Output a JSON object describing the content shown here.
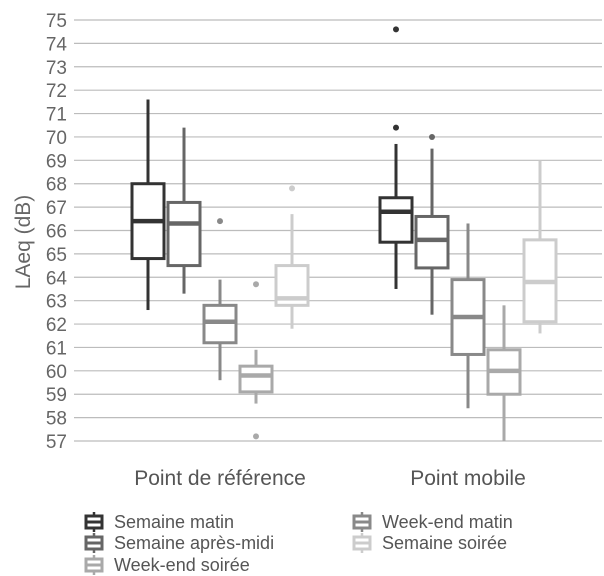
{
  "chart_data": {
    "type": "box",
    "title": "",
    "xlabel": "",
    "ylabel": "LAeq (dB)",
    "ylim": [
      57,
      75
    ],
    "yticks": [
      57,
      58,
      59,
      60,
      61,
      62,
      63,
      64,
      65,
      66,
      67,
      68,
      69,
      70,
      71,
      72,
      73,
      74,
      75
    ],
    "grid": true,
    "legend_position": "bottom",
    "categories": [
      "Point de référence",
      "Point mobile"
    ],
    "series": [
      {
        "name": "Semaine matin",
        "color": "#333333",
        "boxes": [
          {
            "whisker_low": 62.6,
            "q1": 64.8,
            "median": 66.4,
            "q3": 68.0,
            "whisker_high": 71.6,
            "outliers": []
          },
          {
            "whisker_low": 63.5,
            "q1": 65.5,
            "median": 66.8,
            "q3": 67.4,
            "whisker_high": 69.7,
            "outliers": [
              70.4,
              74.6
            ]
          }
        ]
      },
      {
        "name": "Semaine après-midi",
        "color": "#666666",
        "boxes": [
          {
            "whisker_low": 63.3,
            "q1": 64.5,
            "median": 66.3,
            "q3": 67.2,
            "whisker_high": 70.4,
            "outliers": []
          },
          {
            "whisker_low": 62.4,
            "q1": 64.4,
            "median": 65.6,
            "q3": 66.6,
            "whisker_high": 69.5,
            "outliers": [
              70.0
            ]
          }
        ]
      },
      {
        "name": "Week-end matin",
        "color": "#898989",
        "boxes": [
          {
            "whisker_low": 59.6,
            "q1": 61.2,
            "median": 62.1,
            "q3": 62.8,
            "whisker_high": 63.9,
            "outliers": [
              66.4
            ]
          },
          {
            "whisker_low": 58.4,
            "q1": 60.7,
            "median": 62.3,
            "q3": 63.9,
            "whisker_high": 66.3,
            "outliers": []
          }
        ]
      },
      {
        "name": "Week-end soirée",
        "color": "#a9a9a9",
        "boxes": [
          {
            "whisker_low": 58.6,
            "q1": 59.1,
            "median": 59.8,
            "q3": 60.2,
            "whisker_high": 60.9,
            "outliers": [
              63.7,
              57.2
            ]
          },
          {
            "whisker_low": 57.0,
            "q1": 59.0,
            "median": 60.0,
            "q3": 60.9,
            "whisker_high": 62.8,
            "outliers": []
          }
        ]
      },
      {
        "name": "Semaine soirée",
        "color": "#cccccc",
        "boxes": [
          {
            "whisker_low": 61.8,
            "q1": 62.8,
            "median": 63.1,
            "q3": 64.5,
            "whisker_high": 66.7,
            "outliers": [
              67.8
            ]
          },
          {
            "whisker_low": 61.6,
            "q1": 62.1,
            "median": 63.8,
            "q3": 65.6,
            "whisker_high": 69.0,
            "outliers": []
          }
        ]
      }
    ],
    "legend_order": [
      "Semaine matin",
      "Week-end matin",
      "Semaine après-midi",
      "Semaine soirée",
      "Week-end soirée"
    ]
  }
}
